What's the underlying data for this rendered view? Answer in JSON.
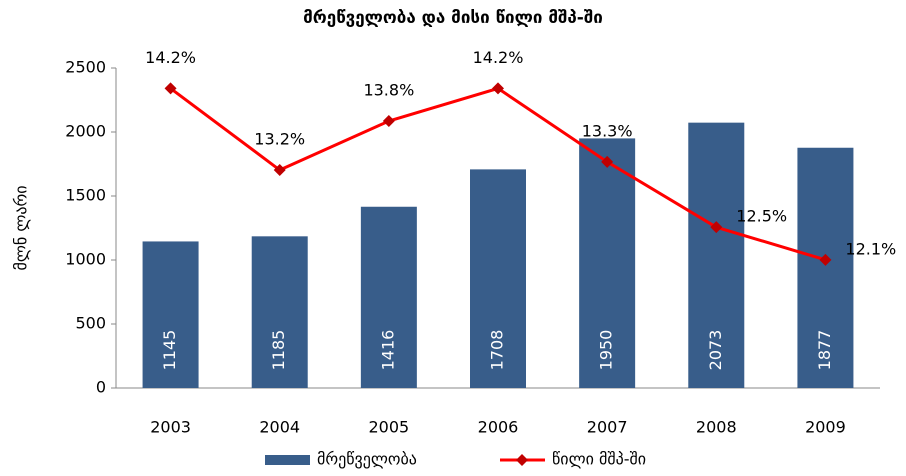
{
  "chart_data": {
    "type": "bar",
    "title": "მრეწველობა და მისი წილი მშპ-ში",
    "y_label": "მლნ ლარი",
    "categories": [
      "2003",
      "2004",
      "2005",
      "2006",
      "2007",
      "2008",
      "2009"
    ],
    "series": [
      {
        "name": "მრეწველობა",
        "type": "bar",
        "color": "#385d8a",
        "values": [
          1145,
          1185,
          1416,
          1708,
          1950,
          2073,
          1877
        ]
      },
      {
        "name": "წილი მშპ-ში",
        "type": "line",
        "axis": "y2",
        "color": "#ff0000",
        "marker_color": "#c00000",
        "values": [
          14.2,
          13.2,
          13.8,
          14.2,
          13.3,
          12.5,
          12.1
        ],
        "value_labels": [
          "14.2%",
          "13.2%",
          "13.8%",
          "14.2%",
          "13.3%",
          "12.5%",
          "12.1%"
        ]
      }
    ],
    "ylim": [
      0,
      2500
    ],
    "yticks": [
      0,
      500,
      1000,
      1500,
      2000,
      2500
    ],
    "y2lim": [
      10.53,
      14.45
    ],
    "legend": "bottom",
    "grid": false
  }
}
